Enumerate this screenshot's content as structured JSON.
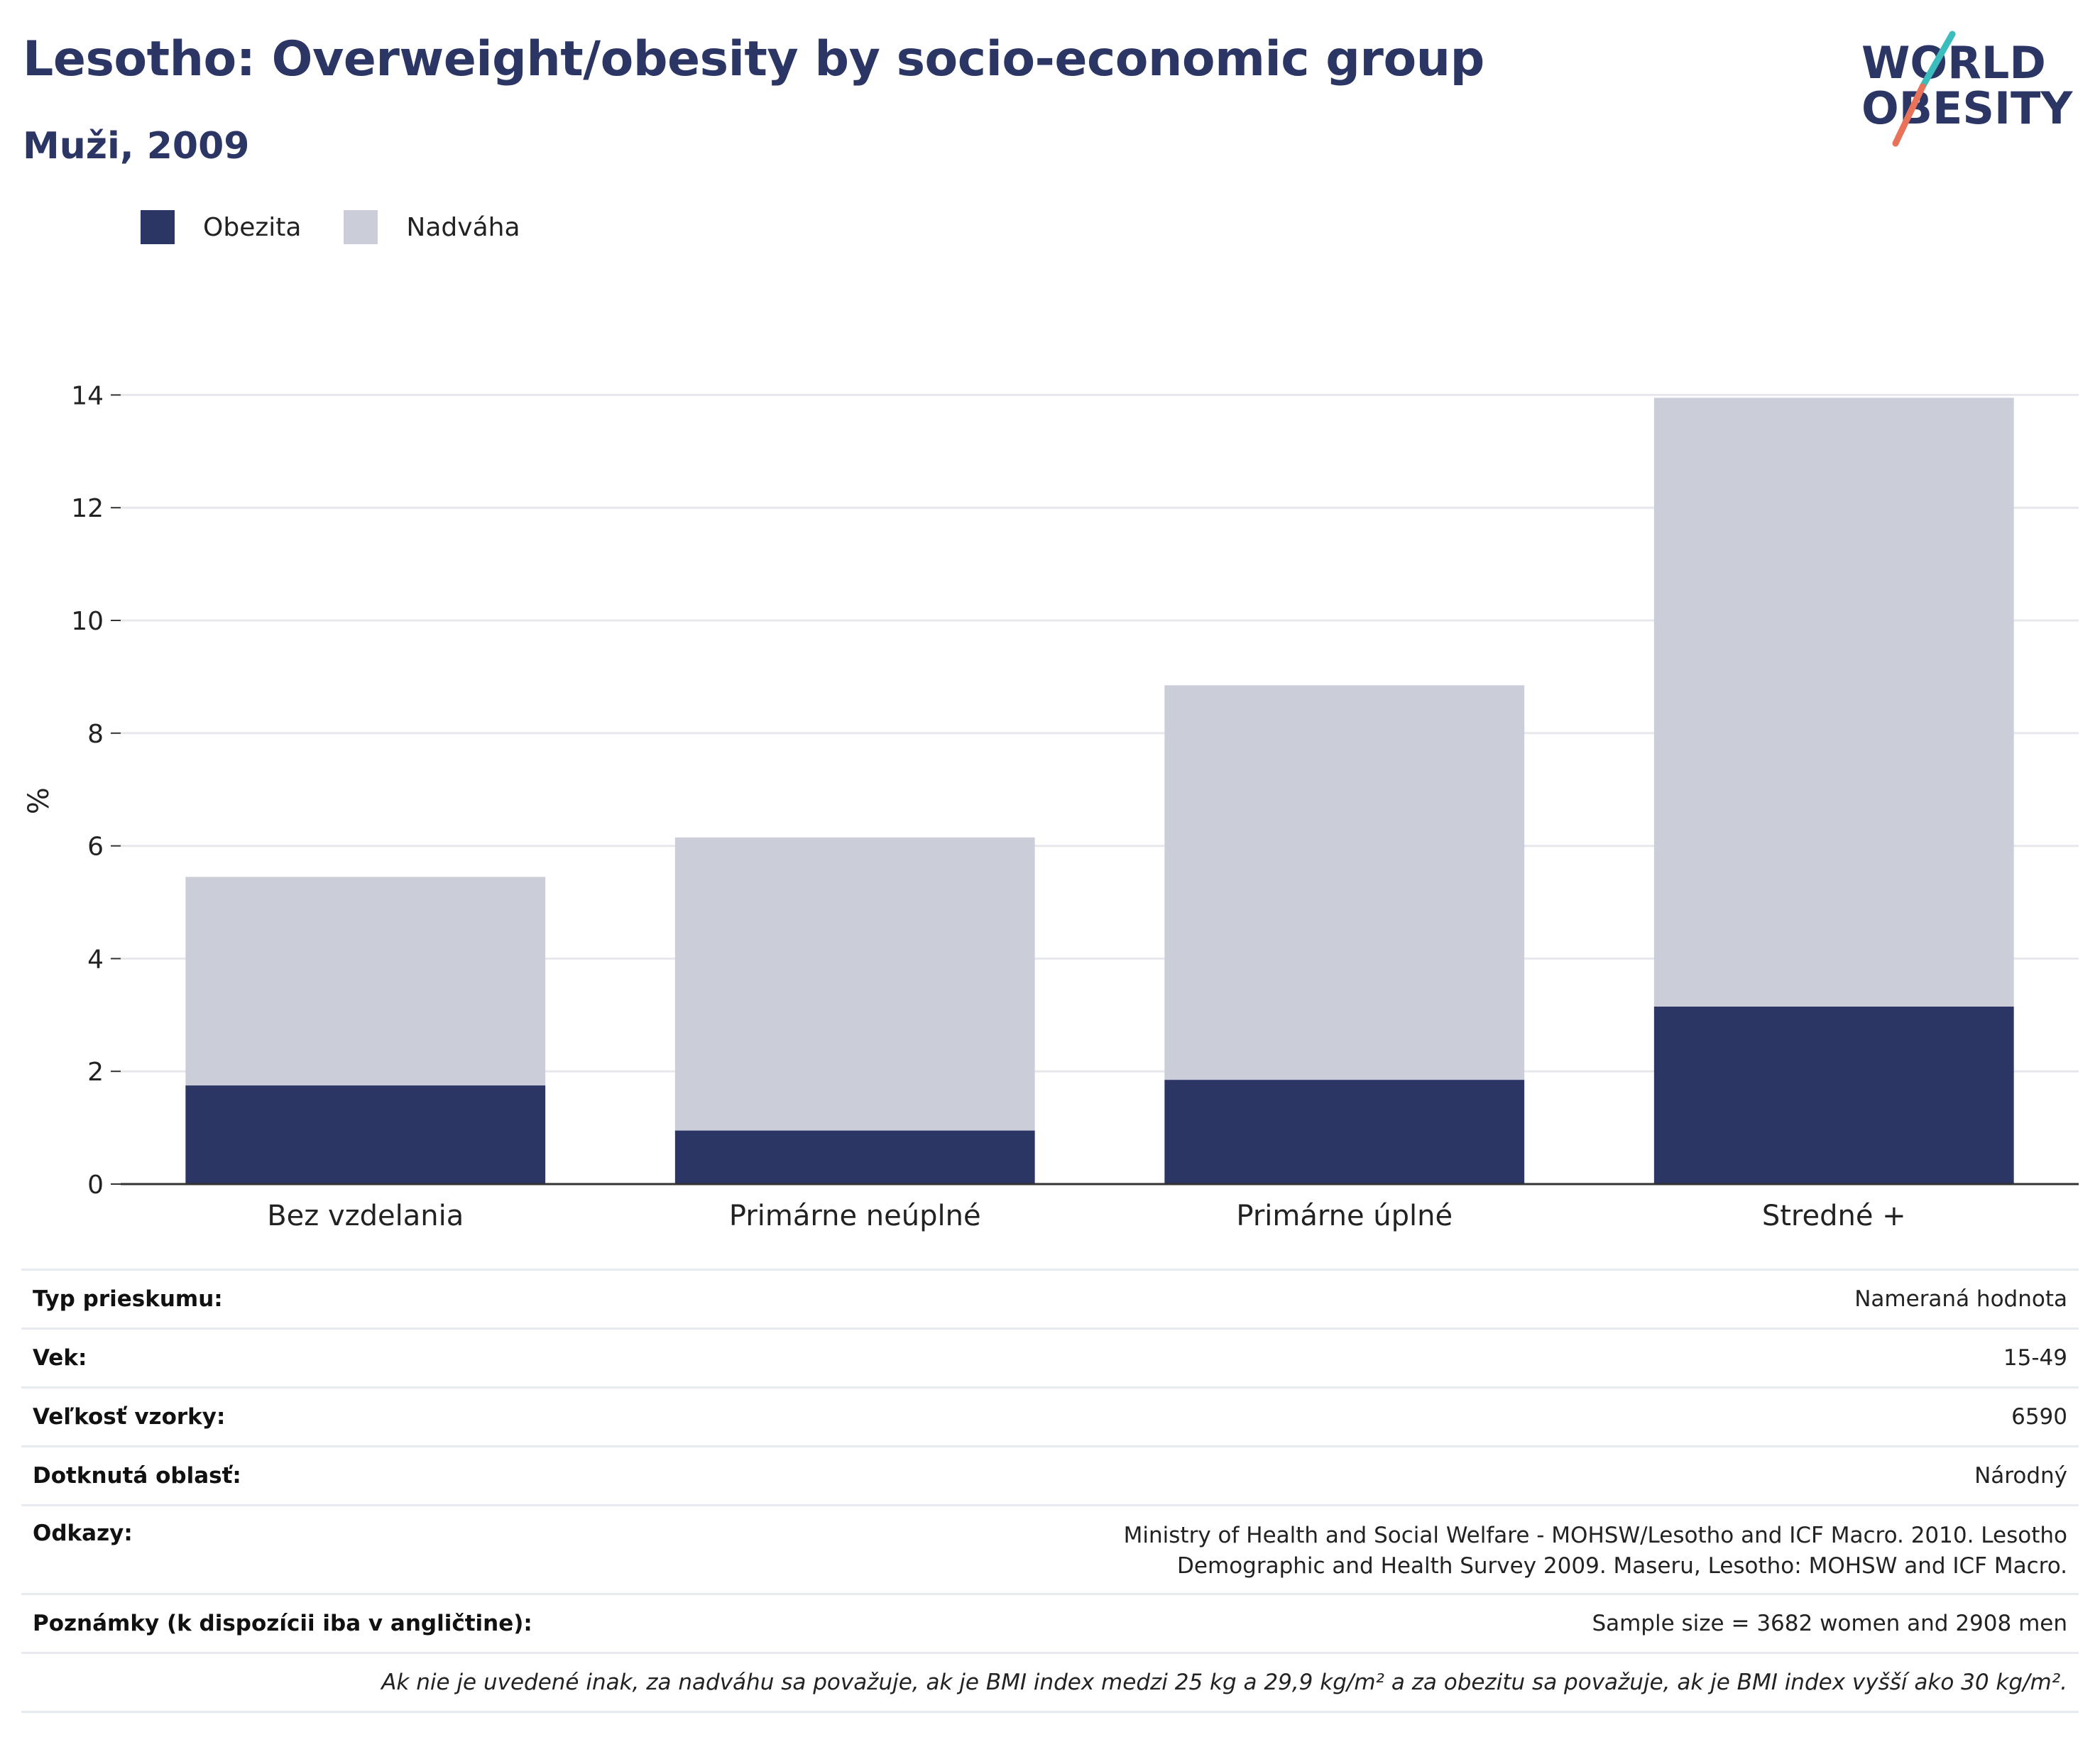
{
  "header": {
    "title": "Lesotho: Overweight/obesity by socio-economic group",
    "subtitle": "Muži, 2009"
  },
  "logo": {
    "line1": "WORLD",
    "line2": "OBESITY"
  },
  "legend": {
    "items": [
      {
        "label": "Obezita",
        "color": "#2b3664"
      },
      {
        "label": "Nadváha",
        "color": "#cbcdd8"
      }
    ]
  },
  "chart_data": {
    "type": "bar",
    "stacked": true,
    "categories": [
      "Bez vzdelania",
      "Primárne neúplné",
      "Primárne úplné",
      "Stredné +"
    ],
    "series": [
      {
        "name": "Obezita",
        "values": [
          1.75,
          0.95,
          1.85,
          3.15
        ],
        "color": "#2b3664"
      },
      {
        "name": "Nadváha",
        "values": [
          3.7,
          5.2,
          7.0,
          10.8
        ],
        "color": "#cbcdd8"
      }
    ],
    "ylabel": "%",
    "ylim": [
      0,
      14
    ],
    "yticks": [
      "0",
      "2",
      "4",
      "6",
      "8",
      "10",
      "12",
      "14"
    ],
    "grid": true,
    "legend_position": "top-left"
  },
  "info": {
    "rows": [
      {
        "key": "Typ prieskumu:",
        "value": "Nameraná hodnota"
      },
      {
        "key": "Vek:",
        "value": "15-49"
      },
      {
        "key": "Veľkosť vzorky:",
        "value": "6590"
      },
      {
        "key": "Dotknutá oblasť:",
        "value": "Národný"
      },
      {
        "key": "Odkazy:",
        "value": "Ministry of Health and Social Welfare - MOHSW/Lesotho and ICF Macro. 2010. Lesotho Demographic and Health Survey 2009. Maseru, Lesotho: MOHSW and ICF Macro."
      },
      {
        "key": "Poznámky (k dispozícii iba v angličtine):",
        "value": "Sample size = 3682 women and 2908 men"
      }
    ],
    "footnote": "Ak nie je uvedené inak, za nadváhu sa považuje, ak je BMI index medzi 25 kg a 29,9 kg/m² a za obezitu sa považuje, ak je BMI index vyšší ako 30 kg/m²."
  }
}
